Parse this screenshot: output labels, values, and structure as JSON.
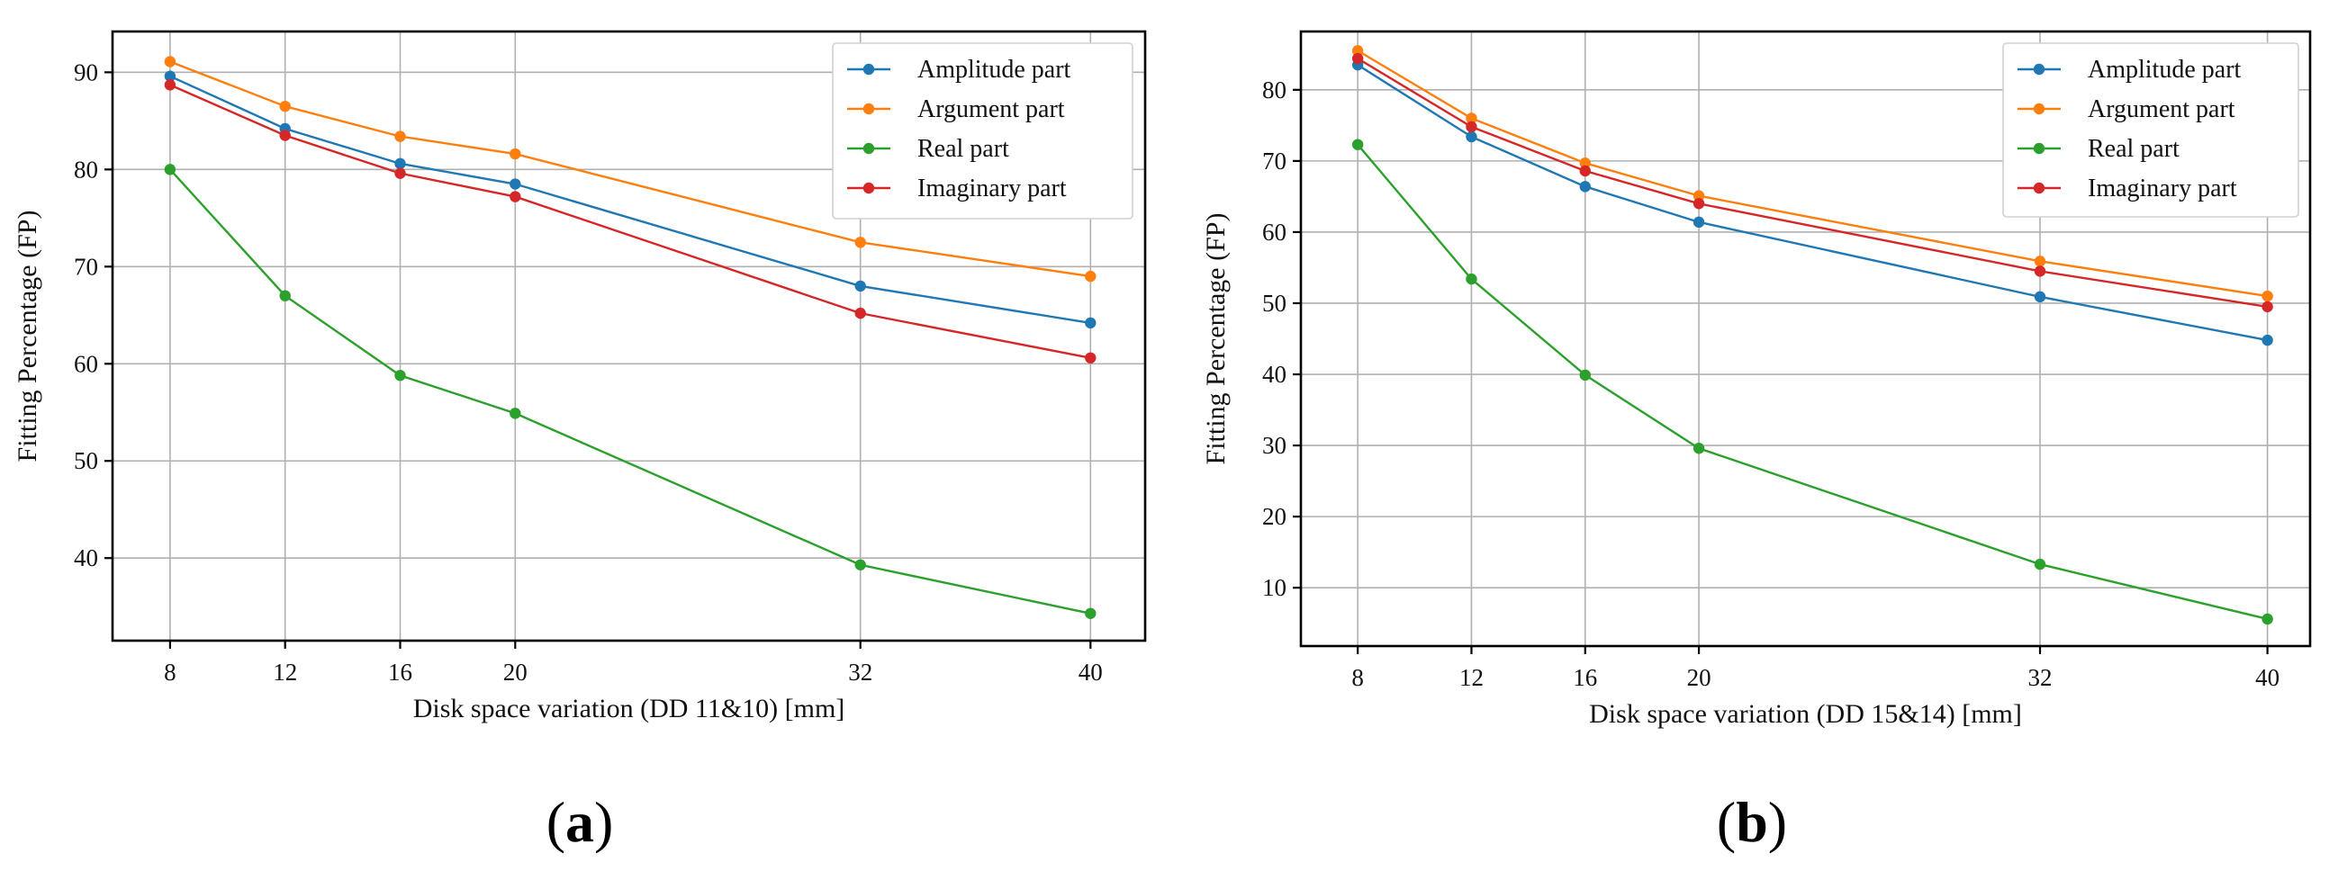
{
  "chart_data": [
    {
      "type": "line",
      "panel_label": {
        "open": "(",
        "letter": "a",
        "close": ")"
      },
      "x": [
        8,
        12,
        16,
        20,
        32,
        40
      ],
      "xticks": [
        "8",
        "12",
        "16",
        "20",
        "32",
        "40"
      ],
      "xlabel": "Disk space variation (DD 11&10) [mm]",
      "ylabel": "Fitting Percentage (FP)",
      "xlim": [
        6.0,
        41.9
      ],
      "ylim": [
        31.5,
        94.2
      ],
      "yticks": [
        40,
        50,
        60,
        70,
        80,
        90
      ],
      "ytick_labels": [
        "40",
        "50",
        "60",
        "70",
        "80",
        "90"
      ],
      "grid": true,
      "legend_position": "top-right",
      "series": [
        {
          "name": "Amplitude part",
          "color": "#1f77b4",
          "values": [
            89.6,
            84.2,
            80.6,
            78.5,
            68.0,
            64.2
          ]
        },
        {
          "name": "Argument part",
          "color": "#ff7f0e",
          "values": [
            91.1,
            86.5,
            83.4,
            81.6,
            72.5,
            69.0
          ]
        },
        {
          "name": "Real part",
          "color": "#2ca02c",
          "values": [
            80.0,
            67.0,
            58.8,
            54.9,
            39.3,
            34.3
          ]
        },
        {
          "name": "Imaginary part",
          "color": "#d62728",
          "values": [
            88.7,
            83.5,
            79.6,
            77.2,
            65.2,
            60.6
          ]
        }
      ]
    },
    {
      "type": "line",
      "panel_label": {
        "open": "(",
        "letter": "b",
        "close": ")"
      },
      "x": [
        8,
        12,
        16,
        20,
        32,
        40
      ],
      "xticks": [
        "8",
        "12",
        "16",
        "20",
        "32",
        "40"
      ],
      "xlabel": "Disk space variation (DD 15&14) [mm]",
      "ylabel": "Fitting Percentage (FP)",
      "xlim": [
        6.0,
        41.5
      ],
      "ylim": [
        1.8,
        88.2
      ],
      "yticks": [
        10,
        20,
        30,
        40,
        50,
        60,
        70,
        80
      ],
      "ytick_labels": [
        "10",
        "20",
        "30",
        "40",
        "50",
        "60",
        "70",
        "80"
      ],
      "grid": true,
      "legend_position": "top-right",
      "series": [
        {
          "name": "Amplitude part",
          "color": "#1f77b4",
          "values": [
            83.5,
            73.4,
            66.4,
            61.4,
            50.9,
            44.8
          ]
        },
        {
          "name": "Argument part",
          "color": "#ff7f0e",
          "values": [
            85.5,
            76.0,
            69.7,
            65.1,
            55.9,
            51.0
          ]
        },
        {
          "name": "Real part",
          "color": "#2ca02c",
          "values": [
            72.3,
            53.4,
            39.9,
            29.6,
            13.3,
            5.6
          ]
        },
        {
          "name": "Imaginary part",
          "color": "#d62728",
          "values": [
            84.4,
            74.8,
            68.6,
            64.0,
            54.5,
            49.5
          ]
        }
      ]
    }
  ]
}
